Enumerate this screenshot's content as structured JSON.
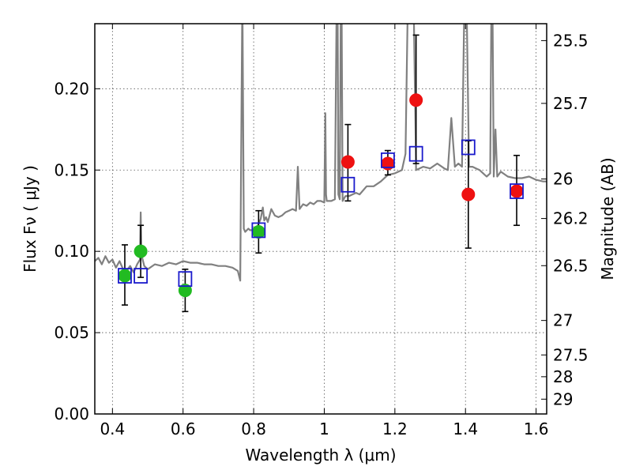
{
  "chart_data": {
    "type": "scatter",
    "xlabel": "Wavelength  λ (μm)",
    "ylabel": "Flux  Fν  ( μJy )",
    "ylabel_right": "Magnitude (AB)",
    "xlim": [
      0.35,
      1.63
    ],
    "ylim": [
      0.0,
      0.24
    ],
    "grid": true,
    "x_ticks": [
      {
        "value": 0.4,
        "label": "0.4"
      },
      {
        "value": 0.6,
        "label": "0.6"
      },
      {
        "value": 0.8,
        "label": "0.8"
      },
      {
        "value": 1.0,
        "label": "1"
      },
      {
        "value": 1.2,
        "label": "1.2"
      },
      {
        "value": 1.4,
        "label": "1.4"
      },
      {
        "value": 1.6,
        "label": "1.6"
      }
    ],
    "y_ticks": [
      {
        "value": 0.0,
        "label": "0.00"
      },
      {
        "value": 0.05,
        "label": "0.05"
      },
      {
        "value": 0.1,
        "label": "0.10"
      },
      {
        "value": 0.15,
        "label": "0.15"
      },
      {
        "value": 0.2,
        "label": "0.20"
      }
    ],
    "right_ticks": [
      {
        "flux": 0.2296,
        "label": "25.5"
      },
      {
        "flux": 0.191,
        "label": "25.7"
      },
      {
        "flux": 0.1445,
        "label": "26"
      },
      {
        "flux": 0.1202,
        "label": "26.2"
      },
      {
        "flux": 0.0912,
        "label": "26.5"
      },
      {
        "flux": 0.0575,
        "label": "27"
      },
      {
        "flux": 0.0363,
        "label": "27.5"
      },
      {
        "flux": 0.0229,
        "label": "28"
      },
      {
        "flux": 0.0091,
        "label": "29"
      }
    ],
    "series": [
      {
        "name": "model spectrum",
        "style": "line",
        "color": "#808080",
        "x": [
          0.35,
          0.36,
          0.37,
          0.38,
          0.39,
          0.4,
          0.41,
          0.42,
          0.43,
          0.44,
          0.45,
          0.46,
          0.47,
          0.478,
          0.48,
          0.482,
          0.49,
          0.5,
          0.52,
          0.54,
          0.56,
          0.58,
          0.6,
          0.62,
          0.64,
          0.66,
          0.68,
          0.7,
          0.72,
          0.74,
          0.755,
          0.762,
          0.768,
          0.772,
          0.776,
          0.785,
          0.79,
          0.8,
          0.81,
          0.82,
          0.826,
          0.83,
          0.835,
          0.84,
          0.85,
          0.86,
          0.87,
          0.88,
          0.89,
          0.9,
          0.91,
          0.92,
          0.925,
          0.93,
          0.94,
          0.95,
          0.96,
          0.97,
          0.98,
          0.99,
          1.0,
          1.003,
          1.005,
          1.007,
          1.01,
          1.02,
          1.03,
          1.037,
          1.04,
          1.044,
          1.048,
          1.052,
          1.06,
          1.07,
          1.08,
          1.09,
          1.1,
          1.12,
          1.14,
          1.16,
          1.18,
          1.2,
          1.22,
          1.23,
          1.24,
          1.25,
          1.26,
          1.28,
          1.3,
          1.32,
          1.34,
          1.35,
          1.36,
          1.37,
          1.38,
          1.39,
          1.4,
          1.41,
          1.42,
          1.43,
          1.44,
          1.45,
          1.46,
          1.47,
          1.475,
          1.48,
          1.485,
          1.49,
          1.5,
          1.52,
          1.54,
          1.56,
          1.58,
          1.6,
          1.62,
          1.63
        ],
        "y": [
          0.094,
          0.096,
          0.092,
          0.097,
          0.093,
          0.095,
          0.09,
          0.094,
          0.089,
          0.088,
          0.091,
          0.087,
          0.092,
          0.095,
          0.124,
          0.098,
          0.091,
          0.089,
          0.092,
          0.091,
          0.093,
          0.092,
          0.094,
          0.093,
          0.093,
          0.092,
          0.092,
          0.091,
          0.091,
          0.09,
          0.088,
          0.082,
          0.26,
          0.114,
          0.112,
          0.114,
          0.113,
          0.113,
          0.115,
          0.12,
          0.127,
          0.119,
          0.121,
          0.118,
          0.126,
          0.122,
          0.121,
          0.122,
          0.124,
          0.125,
          0.126,
          0.125,
          0.152,
          0.126,
          0.129,
          0.128,
          0.13,
          0.129,
          0.131,
          0.131,
          0.13,
          0.185,
          0.135,
          0.131,
          0.131,
          0.131,
          0.132,
          0.3,
          0.135,
          0.132,
          0.3,
          0.131,
          0.134,
          0.134,
          0.135,
          0.136,
          0.135,
          0.14,
          0.14,
          0.143,
          0.147,
          0.148,
          0.15,
          0.16,
          0.3,
          0.3,
          0.15,
          0.152,
          0.151,
          0.154,
          0.151,
          0.15,
          0.182,
          0.152,
          0.154,
          0.152,
          0.3,
          0.152,
          0.152,
          0.151,
          0.15,
          0.148,
          0.146,
          0.148,
          0.3,
          0.146,
          0.175,
          0.146,
          0.149,
          0.146,
          0.145,
          0.145,
          0.146,
          0.144,
          0.143,
          0.143
        ]
      },
      {
        "name": "green points",
        "style": "marker-circle",
        "color": "#22bb22",
        "points": [
          {
            "x": 0.435,
            "y": 0.085,
            "lo": 0.067,
            "hi": 0.104
          },
          {
            "x": 0.48,
            "y": 0.1,
            "lo": 0.084,
            "hi": 0.116
          },
          {
            "x": 0.606,
            "y": 0.076,
            "lo": 0.063,
            "hi": 0.089
          },
          {
            "x": 0.814,
            "y": 0.112,
            "lo": 0.099,
            "hi": 0.125
          }
        ]
      },
      {
        "name": "red points",
        "style": "marker-circle",
        "color": "#ee1111",
        "points": [
          {
            "x": 1.067,
            "y": 0.155,
            "lo": 0.131,
            "hi": 0.178
          },
          {
            "x": 1.18,
            "y": 0.154,
            "lo": 0.147,
            "hi": 0.162
          },
          {
            "x": 1.26,
            "y": 0.193,
            "lo": 0.154,
            "hi": 0.233
          },
          {
            "x": 1.408,
            "y": 0.135,
            "lo": 0.102,
            "hi": 0.168
          },
          {
            "x": 1.545,
            "y": 0.137,
            "lo": 0.116,
            "hi": 0.159
          }
        ]
      },
      {
        "name": "model photometry",
        "style": "marker-open-square",
        "color": "#1a1acc",
        "points": [
          {
            "x": 0.435,
            "y": 0.085
          },
          {
            "x": 0.48,
            "y": 0.085
          },
          {
            "x": 0.606,
            "y": 0.083
          },
          {
            "x": 0.814,
            "y": 0.113
          },
          {
            "x": 1.067,
            "y": 0.141
          },
          {
            "x": 1.18,
            "y": 0.156
          },
          {
            "x": 1.26,
            "y": 0.16
          },
          {
            "x": 1.408,
            "y": 0.164
          },
          {
            "x": 1.545,
            "y": 0.137
          }
        ]
      }
    ]
  }
}
